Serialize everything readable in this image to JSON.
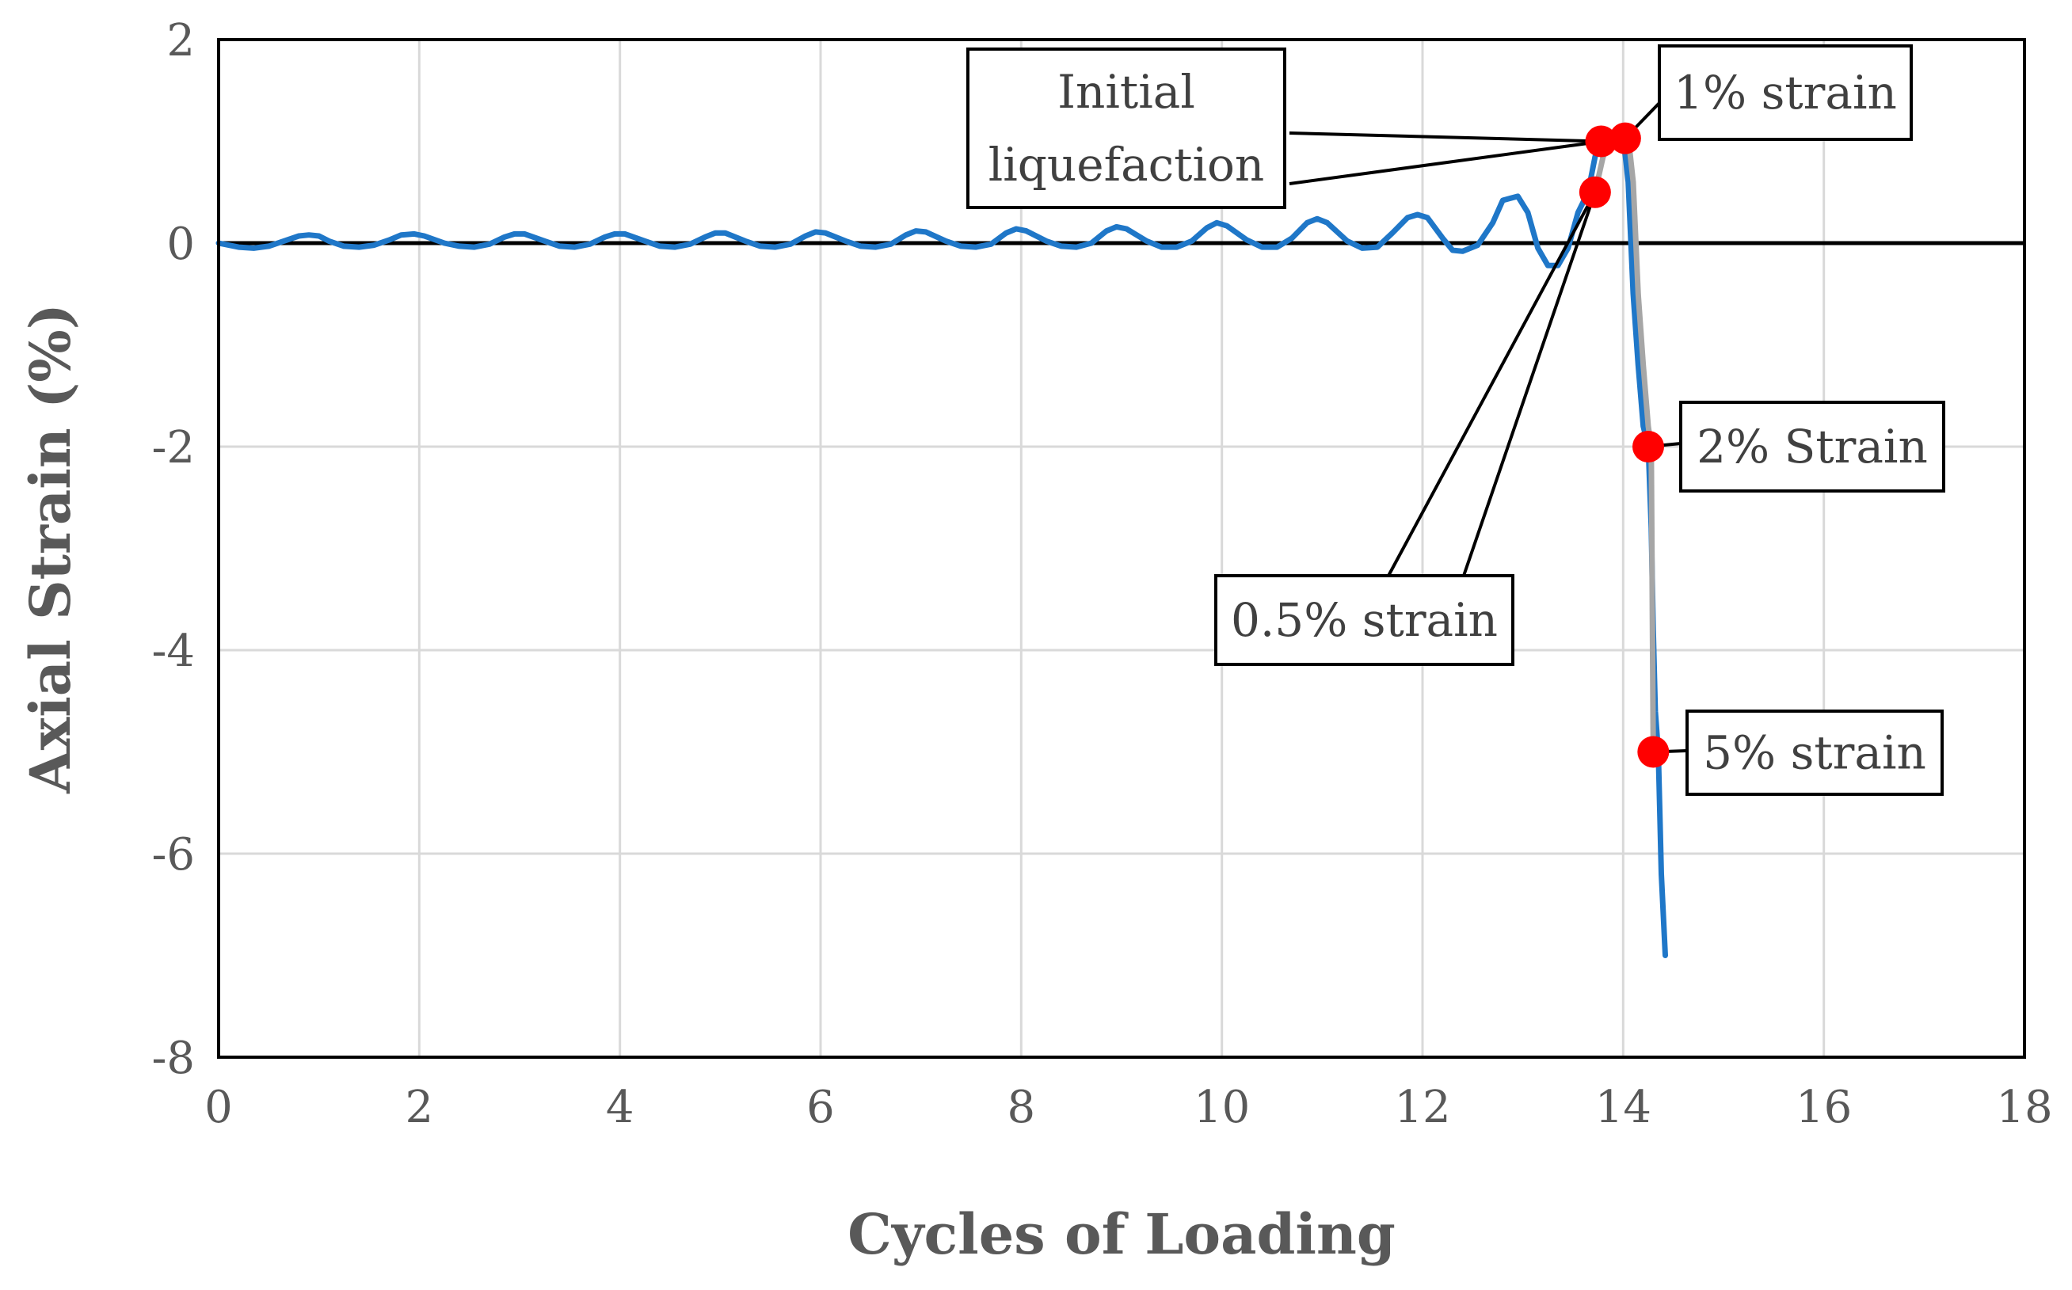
{
  "chart_data": {
    "type": "line",
    "title": "",
    "xlabel": "Cycles of Loading",
    "ylabel": "Axial Strain (%)",
    "xlim": [
      0,
      18
    ],
    "ylim": [
      -8,
      2
    ],
    "xticks": [
      0,
      2,
      4,
      6,
      8,
      10,
      12,
      14,
      16,
      18
    ],
    "yticks": [
      2,
      0,
      -2,
      -4,
      -6,
      -8
    ],
    "grid": true,
    "legend": "none",
    "series": [
      {
        "name": "Axial strain",
        "color": "#1f77c8",
        "x": [
          0,
          0.2,
          0.35,
          0.5,
          0.65,
          0.8,
          0.9,
          1.0,
          1.1,
          1.25,
          1.4,
          1.55,
          1.7,
          1.82,
          1.95,
          2.05,
          2.25,
          2.4,
          2.55,
          2.7,
          2.85,
          2.95,
          3.05,
          3.25,
          3.4,
          3.55,
          3.7,
          3.85,
          3.95,
          4.05,
          4.25,
          4.4,
          4.55,
          4.7,
          4.85,
          4.95,
          5.05,
          5.25,
          5.4,
          5.55,
          5.7,
          5.85,
          5.95,
          6.05,
          6.25,
          6.4,
          6.55,
          6.7,
          6.85,
          6.95,
          7.05,
          7.25,
          7.4,
          7.55,
          7.7,
          7.85,
          7.95,
          8.05,
          8.25,
          8.4,
          8.55,
          8.7,
          8.85,
          8.95,
          9.05,
          9.25,
          9.4,
          9.55,
          9.7,
          9.85,
          9.95,
          10.05,
          10.25,
          10.4,
          10.55,
          10.7,
          10.85,
          10.95,
          11.05,
          11.25,
          11.4,
          11.55,
          11.7,
          11.85,
          11.95,
          12.05,
          12.2,
          12.3,
          12.4,
          12.55,
          12.7,
          12.8,
          12.95,
          13.05,
          13.15,
          13.25,
          13.35,
          13.45,
          13.55,
          13.65,
          13.72,
          13.8,
          13.9,
          14.0,
          14.05,
          14.1,
          14.15,
          14.2,
          14.25,
          14.28,
          14.3,
          14.32,
          14.35,
          14.38,
          14.42
        ],
        "y": [
          0,
          -0.04,
          -0.05,
          -0.03,
          0.02,
          0.07,
          0.08,
          0.07,
          0.02,
          -0.03,
          -0.04,
          -0.02,
          0.03,
          0.08,
          0.09,
          0.07,
          0.0,
          -0.03,
          -0.04,
          -0.01,
          0.06,
          0.09,
          0.09,
          0.02,
          -0.03,
          -0.04,
          -0.01,
          0.06,
          0.09,
          0.09,
          0.02,
          -0.03,
          -0.04,
          -0.01,
          0.06,
          0.1,
          0.1,
          0.02,
          -0.03,
          -0.04,
          -0.01,
          0.07,
          0.11,
          0.1,
          0.02,
          -0.03,
          -0.04,
          -0.01,
          0.08,
          0.12,
          0.11,
          0.02,
          -0.03,
          -0.04,
          -0.01,
          0.1,
          0.14,
          0.12,
          0.02,
          -0.03,
          -0.04,
          0.0,
          0.12,
          0.16,
          0.14,
          0.02,
          -0.04,
          -0.04,
          0.02,
          0.15,
          0.2,
          0.17,
          0.03,
          -0.04,
          -0.04,
          0.05,
          0.2,
          0.24,
          0.2,
          0.02,
          -0.05,
          -0.04,
          0.1,
          0.25,
          0.28,
          0.25,
          0.05,
          -0.07,
          -0.08,
          -0.02,
          0.2,
          0.42,
          0.46,
          0.3,
          -0.05,
          -0.22,
          -0.22,
          -0.05,
          0.3,
          0.5,
          0.85,
          1.0,
          1.05,
          1.05,
          0.6,
          -0.5,
          -1.2,
          -1.8,
          -2.0,
          -2.8,
          -3.8,
          -4.6,
          -5.0,
          -6.2,
          -7.0
        ]
      },
      {
        "name": "Highlighted segment",
        "color": "#a6a6a6",
        "x": [
          13.72,
          13.8,
          13.9,
          14.0,
          14.05,
          14.1,
          14.15,
          14.2,
          14.25,
          14.28,
          14.3
        ],
        "y": [
          0.5,
          0.85,
          1.0,
          1.05,
          1.05,
          0.6,
          -0.5,
          -1.2,
          -1.8,
          -2.0,
          -5.0
        ]
      }
    ],
    "markers": [
      {
        "x": 13.72,
        "y": 0.5
      },
      {
        "x": 13.78,
        "y": 1.0
      },
      {
        "x": 14.02,
        "y": 1.03
      },
      {
        "x": 14.25,
        "y": -2.0
      },
      {
        "x": 14.3,
        "y": -5.0
      }
    ],
    "marker_color": "#ff0000",
    "annotations": [
      {
        "lines": [
          "Initial",
          "liquefaction"
        ],
        "points_to": [
          {
            "x": 13.78,
            "y": 1.0
          }
        ]
      },
      {
        "lines": [
          "1% strain"
        ],
        "points_to": [
          {
            "x": 14.02,
            "y": 1.03
          }
        ]
      },
      {
        "lines": [
          "2% Strain"
        ],
        "points_to": [
          {
            "x": 14.25,
            "y": -2.0
          }
        ]
      },
      {
        "lines": [
          "0.5% strain"
        ],
        "points_to": [
          {
            "x": 13.72,
            "y": 0.5
          },
          {
            "x": 13.72,
            "y": 0.5
          }
        ]
      },
      {
        "lines": [
          "5% strain"
        ],
        "points_to": [
          {
            "x": 14.3,
            "y": -5.0
          }
        ]
      }
    ],
    "zero_line": true
  }
}
